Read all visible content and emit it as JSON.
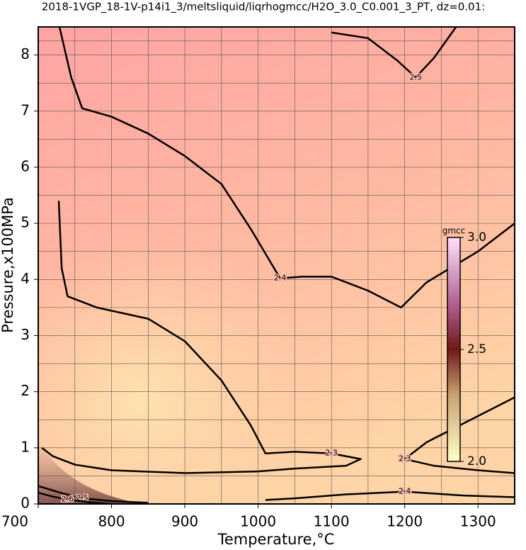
{
  "chart_data": {
    "type": "contour",
    "title": "2018-1VGP_18-1V-p14i1_3/meltsliquid/liqrhogmcc/H2O_3.0_C0.001_3_PT, dz=0.01:",
    "x_label": "Temperature,°C",
    "y_label": "Pressure,x100MPa",
    "xlim": [
      700,
      1350
    ],
    "ylim": [
      0,
      8.5
    ],
    "xticks": [
      700,
      800,
      900,
      1000,
      1100,
      1200,
      1300
    ],
    "yticks": [
      0,
      1,
      2,
      3,
      4,
      5,
      6,
      7,
      8
    ],
    "grid": true,
    "colorbar": {
      "label": "gmcc",
      "lim": [
        2.0,
        3.0
      ],
      "ticks": [
        {
          "value": 2.0,
          "label": "2.0"
        },
        {
          "value": 2.5,
          "label": "2.5"
        },
        {
          "value": 3.0,
          "label": "3.0"
        }
      ]
    },
    "contours": [
      {
        "level": 2.5,
        "x": [
          1100,
          1150,
          1190,
          1215,
          1240,
          1270
        ],
        "y": [
          8.4,
          8.3,
          7.9,
          7.6,
          7.95,
          8.5
        ]
      },
      {
        "level": 2.4,
        "x": [
          729,
          745,
          760,
          800,
          850,
          900,
          950,
          990,
          1030,
          1060,
          1100,
          1150,
          1195,
          1230,
          1300,
          1350
        ],
        "y": [
          8.5,
          7.6,
          7.05,
          6.9,
          6.6,
          6.2,
          5.7,
          4.9,
          4.02,
          4.05,
          4.05,
          3.8,
          3.5,
          3.95,
          4.5,
          5.0
        ]
      },
      {
        "level": 2.3,
        "x": [
          728,
          732,
          740,
          780,
          850,
          900,
          950,
          990,
          1010,
          1050,
          1100,
          1140,
          1120,
          1050,
          1000,
          900,
          800,
          750,
          720,
          705
        ],
        "y": [
          5.4,
          4.2,
          3.7,
          3.5,
          3.3,
          2.9,
          2.2,
          1.4,
          0.9,
          0.93,
          0.9,
          0.8,
          0.68,
          0.63,
          0.58,
          0.55,
          0.6,
          0.7,
          0.85,
          1.0
        ]
      },
      {
        "level": 2.3,
        "x": [
          1350,
          1290,
          1230,
          1200,
          1240,
          1300,
          1350
        ],
        "y": [
          1.9,
          1.5,
          1.1,
          0.8,
          0.68,
          0.6,
          0.55
        ]
      },
      {
        "level": 2.4,
        "x": [
          1010,
          1050,
          1120,
          1200,
          1280,
          1350
        ],
        "y": [
          0.07,
          0.1,
          0.17,
          0.22,
          0.15,
          0.12
        ]
      },
      {
        "level": 2.5,
        "x": [
          700,
          730,
          760,
          800,
          850
        ],
        "y": [
          0.32,
          0.2,
          0.1,
          0.05,
          0.02
        ]
      },
      {
        "level": 2.6,
        "x": [
          700,
          720,
          740,
          770,
          800
        ],
        "y": [
          0.2,
          0.13,
          0.08,
          0.03,
          0.0
        ]
      }
    ]
  }
}
